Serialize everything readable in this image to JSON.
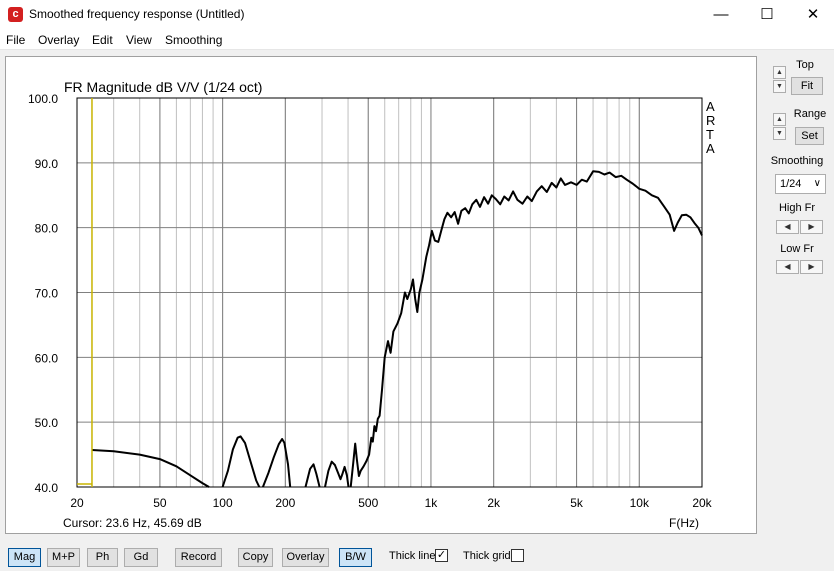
{
  "window": {
    "title": "Smoothed frequency response (Untitled)",
    "icon_name": "arta-app-icon",
    "controls": [
      "minimize-icon",
      "maximize-icon",
      "close-icon"
    ]
  },
  "menu": [
    "File",
    "Overlay",
    "Edit",
    "View",
    "Smoothing"
  ],
  "plot": {
    "title": "FR Magnitude dB V/V (1/24 oct)",
    "watermark": [
      "A",
      "R",
      "T",
      "A"
    ],
    "cursor_readout": "Cursor: 23.6 Hz, 45.69 dB",
    "cursor_color": "#c8b400"
  },
  "chart_data": {
    "type": "line",
    "title": "FR Magnitude dB V/V (1/24 oct)",
    "xlabel": "F(Hz)",
    "ylabel": "",
    "xscale": "log",
    "xlim": [
      20,
      20000
    ],
    "ylim": [
      40,
      100
    ],
    "grid": true,
    "xticks": [
      20,
      50,
      100,
      200,
      500,
      1000,
      2000,
      5000,
      10000,
      20000
    ],
    "xtick_labels": [
      "20",
      "50",
      "100",
      "200",
      "500",
      "1k",
      "2k",
      "5k",
      "10k",
      "20k"
    ],
    "yticks": [
      40,
      50,
      60,
      70,
      80,
      90,
      100
    ],
    "ytick_labels": [
      "40.0",
      "50.0",
      "60.0",
      "70.0",
      "80.0",
      "90.0",
      "100.0"
    ],
    "cursor": {
      "x": 23.6,
      "y": 45.69
    },
    "series": [
      {
        "color": "#000000",
        "segments": [
          [
            [
              23.6,
              45.7
            ],
            [
              30,
              45.5
            ],
            [
              40,
              45.0
            ],
            [
              50,
              44.3
            ],
            [
              60,
              43.2
            ],
            [
              70,
              41.8
            ],
            [
              80,
              40.6
            ],
            [
              86,
              40.0
            ]
          ],
          [
            [
              100,
              40.0
            ],
            [
              106,
              42.5
            ],
            [
              112,
              45.8
            ],
            [
              118,
              47.6
            ],
            [
              122,
              47.8
            ],
            [
              128,
              46.8
            ],
            [
              136,
              44.0
            ],
            [
              145,
              41.0
            ],
            [
              150,
              40.0
            ]
          ],
          [
            [
              156,
              40.0
            ],
            [
              166,
              42.2
            ],
            [
              176,
              44.6
            ],
            [
              186,
              46.6
            ],
            [
              193,
              47.4
            ],
            [
              198,
              46.8
            ],
            [
              206,
              43.5
            ],
            [
              211,
              40.0
            ]
          ],
          [
            [
              250,
              40.0
            ],
            [
              263,
              42.8
            ],
            [
              273,
              43.5
            ],
            [
              282,
              42.0
            ],
            [
              292,
              40.0
            ]
          ],
          [
            [
              310,
              40.0
            ],
            [
              322,
              42.5
            ],
            [
              334,
              43.9
            ],
            [
              346,
              43.4
            ],
            [
              358,
              42.2
            ],
            [
              368,
              41.2
            ],
            [
              376,
              42.0
            ],
            [
              385,
              43.1
            ],
            [
              395,
              41.8
            ],
            [
              402,
              40.0
            ]
          ],
          [
            [
              412,
              40.0
            ],
            [
              424,
              43.8
            ],
            [
              433,
              46.7
            ],
            [
              441,
              44.2
            ],
            [
              451,
              41.7
            ],
            [
              460,
              42.5
            ],
            [
              475,
              43.2
            ],
            [
              490,
              44.0
            ],
            [
              505,
              45.0
            ],
            [
              517,
              47.6
            ],
            [
              526,
              47.0
            ],
            [
              535,
              49.4
            ],
            [
              545,
              48.6
            ],
            [
              556,
              50.5
            ],
            [
              567,
              51.0
            ],
            [
              582,
              55.0
            ],
            [
              600,
              60.0
            ],
            [
              622,
              62.5
            ],
            [
              640,
              60.7
            ],
            [
              660,
              64.0
            ],
            [
              690,
              65.2
            ],
            [
              720,
              66.8
            ],
            [
              750,
              70.0
            ],
            [
              770,
              69.0
            ],
            [
              800,
              70.5
            ],
            [
              820,
              72.0
            ],
            [
              840,
              69.0
            ],
            [
              860,
              67.0
            ],
            [
              880,
              70.0
            ],
            [
              910,
              72.0
            ],
            [
              950,
              75.5
            ],
            [
              980,
              77.3
            ],
            [
              1010,
              79.5
            ],
            [
              1045,
              78.0
            ],
            [
              1085,
              77.8
            ],
            [
              1120,
              79.5
            ],
            [
              1160,
              81.3
            ],
            [
              1200,
              82.3
            ],
            [
              1250,
              81.6
            ],
            [
              1300,
              82.4
            ],
            [
              1350,
              80.6
            ],
            [
              1400,
              82.6
            ],
            [
              1460,
              83.0
            ],
            [
              1520,
              82.2
            ],
            [
              1580,
              83.6
            ],
            [
              1650,
              84.3
            ],
            [
              1720,
              83.2
            ],
            [
              1800,
              84.7
            ],
            [
              1880,
              83.7
            ],
            [
              1960,
              85.0
            ],
            [
              2050,
              84.4
            ],
            [
              2150,
              83.6
            ],
            [
              2250,
              84.8
            ],
            [
              2360,
              84.2
            ],
            [
              2480,
              85.6
            ],
            [
              2600,
              84.3
            ],
            [
              2750,
              83.7
            ],
            [
              2900,
              84.8
            ],
            [
              3050,
              84.1
            ],
            [
              3220,
              85.6
            ],
            [
              3400,
              86.4
            ],
            [
              3600,
              85.5
            ],
            [
              3800,
              86.9
            ],
            [
              4000,
              86.2
            ],
            [
              4200,
              87.6
            ],
            [
              4400,
              86.6
            ],
            [
              4700,
              87.0
            ],
            [
              5000,
              86.6
            ],
            [
              5300,
              87.4
            ],
            [
              5600,
              87.1
            ],
            [
              6000,
              88.7
            ],
            [
              6400,
              88.6
            ],
            [
              6800,
              88.2
            ],
            [
              7200,
              88.5
            ],
            [
              7700,
              87.8
            ],
            [
              8200,
              88.0
            ],
            [
              8700,
              87.4
            ],
            [
              9300,
              86.8
            ],
            [
              10000,
              86.0
            ],
            [
              10700,
              85.7
            ],
            [
              11500,
              85.0
            ],
            [
              12300,
              84.6
            ],
            [
              13200,
              83.2
            ],
            [
              14000,
              82.0
            ],
            [
              14700,
              79.5
            ],
            [
              15300,
              80.8
            ],
            [
              16000,
              81.9
            ],
            [
              16800,
              82.0
            ],
            [
              17600,
              81.6
            ],
            [
              18400,
              80.7
            ],
            [
              19200,
              80.0
            ],
            [
              20000,
              78.8
            ]
          ]
        ]
      }
    ]
  },
  "side_panel": {
    "top_label": "Top",
    "fit_label": "Fit",
    "range_label": "Range",
    "set_label": "Set",
    "smoothing_label": "Smoothing",
    "smoothing_value": "1/24",
    "high_fr_label": "High Fr",
    "low_fr_label": "Low Fr"
  },
  "toolbar": {
    "buttons": [
      "Mag",
      "M+P",
      "Ph",
      "Gd",
      "Record",
      "Copy",
      "Overlay",
      "B/W"
    ],
    "thick_line_label": "Thick line",
    "thick_line_checked": true,
    "thick_grid_label": "Thick grid",
    "thick_grid_checked": false
  }
}
